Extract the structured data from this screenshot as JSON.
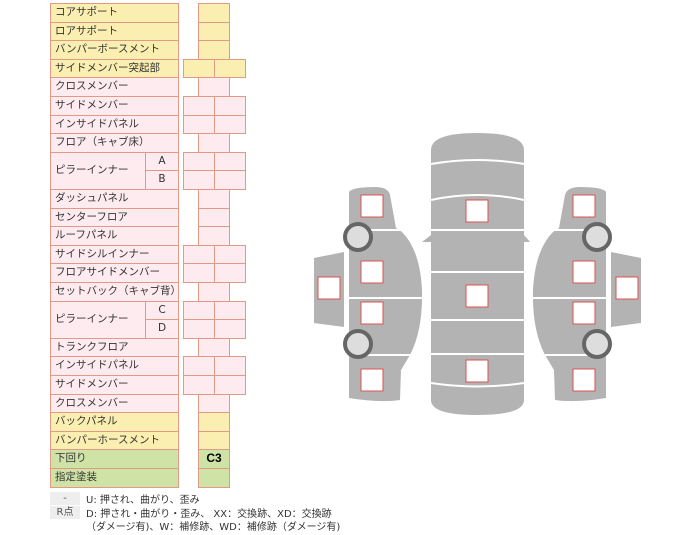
{
  "rows": [
    {
      "label": "コアサポート",
      "color": "y",
      "cells": 1
    },
    {
      "label": "ロアサポート",
      "color": "y",
      "cells": 1
    },
    {
      "label": "バンパーボースメント",
      "color": "y",
      "cells": 1
    },
    {
      "label": "サイドメンバー突起部",
      "color": "y",
      "cells": 2
    },
    {
      "label": "クロスメンバー",
      "color": "p",
      "cells": 1
    },
    {
      "label": "サイドメンバー",
      "color": "p",
      "cells": 2
    },
    {
      "label": "インサイドパネル",
      "color": "p",
      "cells": 2
    },
    {
      "label": "フロア（キャブ床）",
      "color": "p",
      "cells": 1
    },
    {
      "label": "ピラーインナー",
      "sub": "A",
      "color": "p",
      "cells": 2
    },
    {
      "label": "",
      "sub": "B",
      "color": "p",
      "cells": 2
    },
    {
      "label": "ダッシュパネル",
      "color": "p",
      "cells": 1
    },
    {
      "label": "センターフロア",
      "color": "p",
      "cells": 1
    },
    {
      "label": "ルーフパネル",
      "color": "p",
      "cells": 1
    },
    {
      "label": "サイドシルインナー",
      "color": "p",
      "cells": 2
    },
    {
      "label": "フロアサイドメンバー",
      "color": "p",
      "cells": 2
    },
    {
      "label": "セットバック（キャブ背）",
      "color": "p",
      "cells": 1
    },
    {
      "label": "ピラーインナー",
      "sub": "C",
      "color": "p",
      "cells": 2
    },
    {
      "label": "",
      "sub": "D",
      "color": "p",
      "cells": 2
    },
    {
      "label": "トランクフロア",
      "color": "p",
      "cells": 1
    },
    {
      "label": "インサイドパネル",
      "color": "p",
      "cells": 2
    },
    {
      "label": "サイドメンバー",
      "color": "p",
      "cells": 2
    },
    {
      "label": "クロスメンバー",
      "color": "p",
      "cells": 1
    },
    {
      "label": "バックパネル",
      "color": "y",
      "cells": 1
    },
    {
      "label": "バンパーホースメント",
      "color": "y",
      "cells": 1
    },
    {
      "label": "下回り",
      "color": "g",
      "cells": 1,
      "value": "C3"
    },
    {
      "label": "指定塗装",
      "color": "g",
      "cells": 1
    }
  ],
  "legend": {
    "key1": "-",
    "text1": "U: 押され、曲がり、歪み",
    "key2": "R点",
    "text2": "D: 押され・曲がり・歪み、 XX：交換跡、XD：交換跡",
    "text3": "（ダメージ有)、W：補修跡、WD：補修跡（ダメージ有)"
  },
  "colors": {
    "body": "#b3b3b3",
    "marker": "#d9534f",
    "tire": "#666666"
  }
}
